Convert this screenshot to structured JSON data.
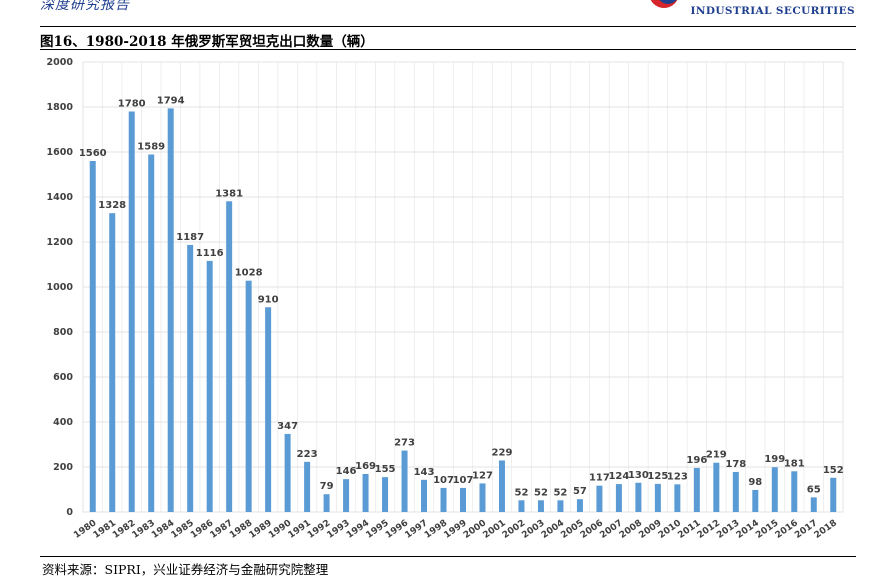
{
  "header": {
    "report_type": "深度研究报告",
    "brand_name": "INDUSTRIAL SECURITIES"
  },
  "figure": {
    "title": "图16、1980-2018 年俄罗斯军贸坦克出口数量（辆）",
    "source": "资料来源：SIPRI，兴业证券经济与金融研究院整理"
  },
  "colors": {
    "bar": "#5b9bd5",
    "grid": "#e3e3e3",
    "axis_text": "#404040",
    "brand_blue": "#1f3f8f",
    "brand_red": "#d7262b"
  },
  "chart_data": {
    "type": "bar",
    "title": "",
    "xlabel": "",
    "ylabel": "",
    "ylim": [
      0,
      2000
    ],
    "yticks": [
      0,
      200,
      400,
      600,
      800,
      1000,
      1200,
      1400,
      1600,
      1800,
      2000
    ],
    "grid": true,
    "categories": [
      "1980",
      "1981",
      "1982",
      "1983",
      "1984",
      "1985",
      "1986",
      "1987",
      "1988",
      "1989",
      "1990",
      "1991",
      "1992",
      "1993",
      "1994",
      "1995",
      "1996",
      "1997",
      "1998",
      "1999",
      "2000",
      "2001",
      "2002",
      "2003",
      "2004",
      "2005",
      "2006",
      "2007",
      "2008",
      "2009",
      "2010",
      "2011",
      "2012",
      "2013",
      "2014",
      "2015",
      "2016",
      "2017",
      "2018"
    ],
    "values": [
      1560,
      1328,
      1780,
      1589,
      1794,
      1187,
      1116,
      1381,
      1028,
      910,
      347,
      223,
      79,
      146,
      169,
      155,
      273,
      143,
      107,
      107,
      127,
      229,
      52,
      52,
      52,
      57,
      117,
      124,
      130,
      125,
      123,
      196,
      219,
      178,
      98,
      199,
      181,
      65,
      152
    ]
  }
}
